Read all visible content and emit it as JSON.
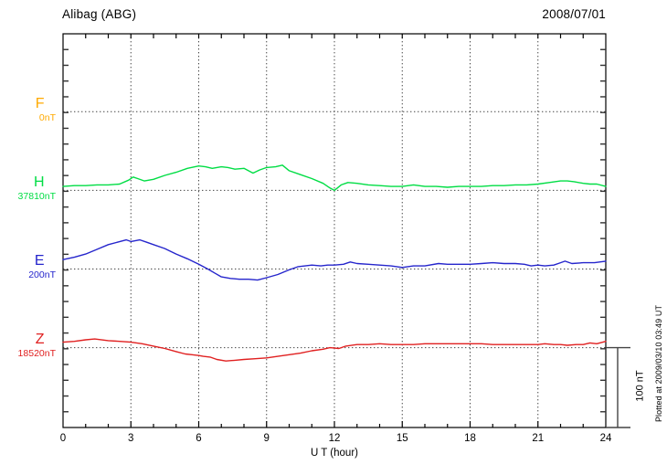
{
  "header": {
    "station": "Alibag (ABG)",
    "date": "2008/07/01"
  },
  "xaxis": {
    "label": "U T (hour)",
    "ticks": [
      "0",
      "3",
      "6",
      "9",
      "12",
      "15",
      "18",
      "21",
      "24"
    ]
  },
  "scale_bar": {
    "label": "100 nT"
  },
  "footer": {
    "plotted_at": "Plotted at 2009/03/10 03:49 UT"
  },
  "colors": {
    "F": "#FFAA00",
    "H": "#00DD44",
    "E": "#2525CC",
    "Z": "#E02020",
    "axis": "#000000",
    "grid": "#444444"
  },
  "chart_data": {
    "type": "line",
    "title": "Alibag (ABG) magnetogram 2008/07/01",
    "xlabel": "U T (hour)",
    "x_range": [
      0,
      24
    ],
    "x_tick_step_hours": 3,
    "grid": "dotted vertical lines every 3 h; dotted horizontal baseline for each component",
    "legend_position": "left margin, one colored label per component",
    "y_scale": "100 nT per division between component baselines (scale bar at right)",
    "units": "nT offset from each component baseline value",
    "series": [
      {
        "name": "F",
        "baseline_label": "0nT",
        "color": "#FFAA00",
        "points": []
      },
      {
        "name": "H",
        "baseline_label": "37810nT",
        "color": "#00DD44",
        "points": [
          [
            0,
            5
          ],
          [
            0.5,
            6
          ],
          [
            1,
            6
          ],
          [
            1.5,
            7
          ],
          [
            2,
            7
          ],
          [
            2.5,
            8
          ],
          [
            2.9,
            13
          ],
          [
            3.1,
            17
          ],
          [
            3.3,
            15
          ],
          [
            3.6,
            12
          ],
          [
            4,
            14
          ],
          [
            4.5,
            19
          ],
          [
            5,
            23
          ],
          [
            5.5,
            28
          ],
          [
            6,
            31
          ],
          [
            6.3,
            30
          ],
          [
            6.6,
            28
          ],
          [
            7,
            30
          ],
          [
            7.3,
            29
          ],
          [
            7.6,
            27
          ],
          [
            8,
            28
          ],
          [
            8.4,
            22
          ],
          [
            8.7,
            26
          ],
          [
            9,
            29
          ],
          [
            9.4,
            30
          ],
          [
            9.7,
            32
          ],
          [
            10,
            25
          ],
          [
            10.5,
            20
          ],
          [
            11,
            15
          ],
          [
            11.5,
            9
          ],
          [
            11.8,
            3
          ],
          [
            12,
            0
          ],
          [
            12.3,
            7
          ],
          [
            12.6,
            10
          ],
          [
            13,
            9
          ],
          [
            13.5,
            7
          ],
          [
            14,
            6
          ],
          [
            14.5,
            5
          ],
          [
            15,
            5
          ],
          [
            15.5,
            7
          ],
          [
            16,
            5
          ],
          [
            16.5,
            5
          ],
          [
            17,
            4
          ],
          [
            17.5,
            5
          ],
          [
            18,
            5
          ],
          [
            18.5,
            5
          ],
          [
            19,
            6
          ],
          [
            19.5,
            6
          ],
          [
            20,
            7
          ],
          [
            20.5,
            7
          ],
          [
            21,
            8
          ],
          [
            21.5,
            10
          ],
          [
            22,
            12
          ],
          [
            22.3,
            12
          ],
          [
            22.6,
            11
          ],
          [
            23,
            9
          ],
          [
            23.3,
            8
          ],
          [
            23.6,
            8
          ],
          [
            24,
            5
          ]
        ]
      },
      {
        "name": "E",
        "baseline_label": "200nT",
        "color": "#2525CC",
        "points": [
          [
            0,
            12
          ],
          [
            0.5,
            15
          ],
          [
            1,
            19
          ],
          [
            1.5,
            25
          ],
          [
            2,
            31
          ],
          [
            2.4,
            34
          ],
          [
            2.8,
            37
          ],
          [
            3,
            35
          ],
          [
            3.4,
            37
          ],
          [
            3.7,
            34
          ],
          [
            4,
            31
          ],
          [
            4.5,
            26
          ],
          [
            5,
            19
          ],
          [
            5.5,
            13
          ],
          [
            6,
            6
          ],
          [
            6.4,
            0
          ],
          [
            6.7,
            -5
          ],
          [
            7,
            -10
          ],
          [
            7.4,
            -12
          ],
          [
            7.8,
            -13
          ],
          [
            8.2,
            -13
          ],
          [
            8.6,
            -14
          ],
          [
            9,
            -11
          ],
          [
            9.5,
            -7
          ],
          [
            10,
            -1
          ],
          [
            10.4,
            3
          ],
          [
            11,
            5
          ],
          [
            11.4,
            4
          ],
          [
            11.7,
            5
          ],
          [
            12,
            5
          ],
          [
            12.4,
            6
          ],
          [
            12.7,
            9
          ],
          [
            13,
            7
          ],
          [
            13.5,
            6
          ],
          [
            14,
            5
          ],
          [
            14.5,
            4
          ],
          [
            15,
            2
          ],
          [
            15.5,
            4
          ],
          [
            16,
            4
          ],
          [
            16.6,
            7
          ],
          [
            17,
            6
          ],
          [
            17.5,
            6
          ],
          [
            18,
            6
          ],
          [
            18.5,
            7
          ],
          [
            19,
            8
          ],
          [
            19.5,
            7
          ],
          [
            20,
            7
          ],
          [
            20.4,
            6
          ],
          [
            20.7,
            4
          ],
          [
            21,
            5
          ],
          [
            21.3,
            4
          ],
          [
            21.7,
            5
          ],
          [
            22,
            8
          ],
          [
            22.2,
            10
          ],
          [
            22.5,
            7
          ],
          [
            23,
            8
          ],
          [
            23.5,
            8
          ],
          [
            24,
            10
          ]
        ]
      },
      {
        "name": "Z",
        "baseline_label": "18520nT",
        "color": "#E02020",
        "points": [
          [
            0,
            7
          ],
          [
            0.5,
            8
          ],
          [
            1,
            10
          ],
          [
            1.4,
            11
          ],
          [
            2,
            9
          ],
          [
            2.5,
            8
          ],
          [
            3,
            7
          ],
          [
            3.5,
            5
          ],
          [
            4,
            2
          ],
          [
            4.5,
            -1
          ],
          [
            5,
            -5
          ],
          [
            5.4,
            -8
          ],
          [
            5.7,
            -9
          ],
          [
            6,
            -10
          ],
          [
            6.2,
            -11
          ],
          [
            6.5,
            -12
          ],
          [
            6.8,
            -15
          ],
          [
            7.2,
            -17
          ],
          [
            7.6,
            -16
          ],
          [
            8,
            -15
          ],
          [
            8.5,
            -14
          ],
          [
            9,
            -13
          ],
          [
            9.5,
            -11
          ],
          [
            10,
            -9
          ],
          [
            10.5,
            -7
          ],
          [
            11,
            -4
          ],
          [
            11.5,
            -2
          ],
          [
            11.8,
            0
          ],
          [
            12.2,
            -1
          ],
          [
            12.5,
            2
          ],
          [
            13,
            4
          ],
          [
            13.5,
            4
          ],
          [
            14,
            5
          ],
          [
            14.5,
            4
          ],
          [
            15,
            4
          ],
          [
            15.5,
            4
          ],
          [
            16,
            5
          ],
          [
            16.5,
            5
          ],
          [
            17,
            5
          ],
          [
            17.5,
            5
          ],
          [
            18,
            5
          ],
          [
            18.5,
            5
          ],
          [
            19,
            4
          ],
          [
            19.5,
            4
          ],
          [
            20,
            4
          ],
          [
            20.5,
            4
          ],
          [
            21,
            4
          ],
          [
            21.3,
            5
          ],
          [
            21.7,
            4
          ],
          [
            22,
            4
          ],
          [
            22.3,
            3
          ],
          [
            22.7,
            4
          ],
          [
            23,
            4
          ],
          [
            23.3,
            6
          ],
          [
            23.6,
            5
          ],
          [
            24,
            8
          ]
        ]
      }
    ]
  }
}
